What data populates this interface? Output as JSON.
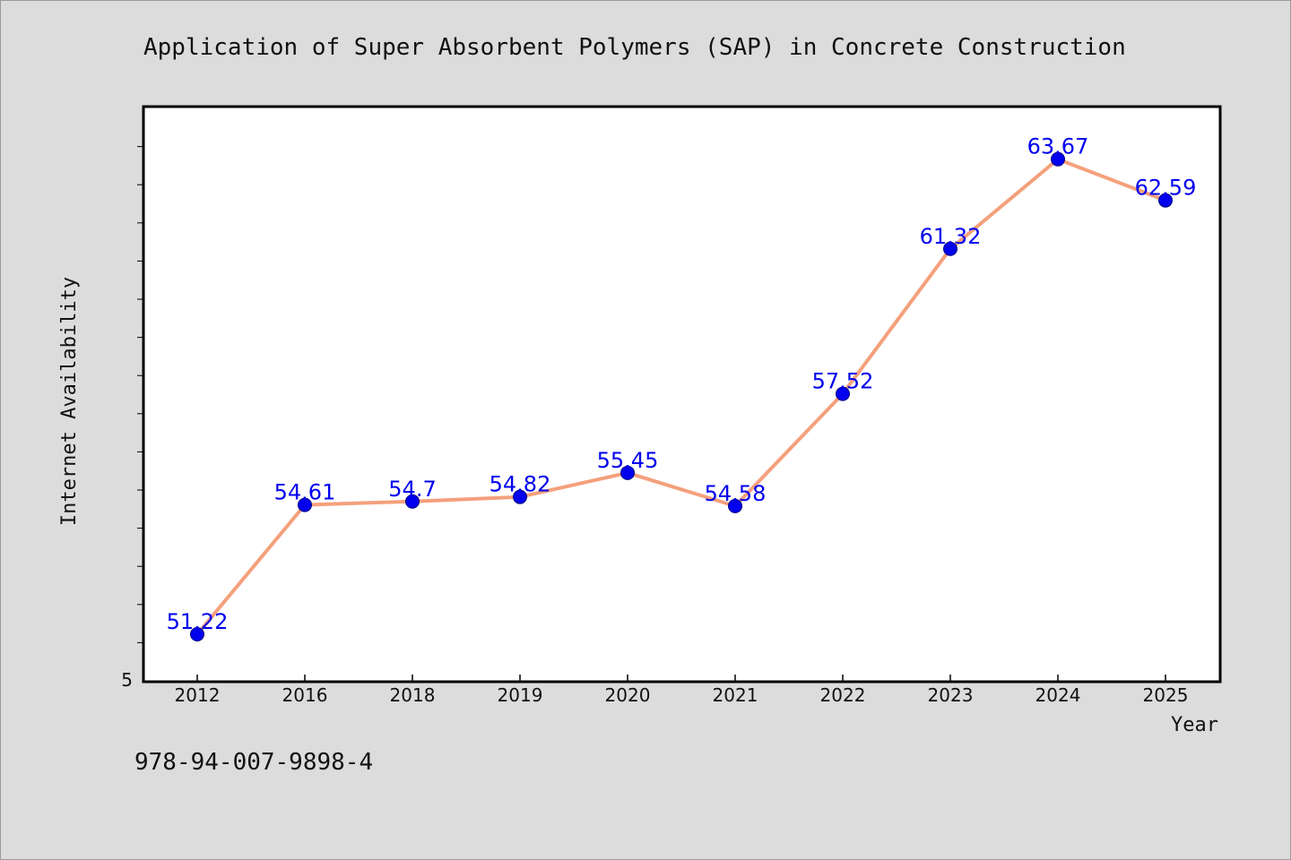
{
  "title": "Application of Super Absorbent Polymers (SAP) in Concrete Construction",
  "footer_code": "978-94-007-9898-4",
  "chart_data": {
    "type": "line",
    "categories": [
      "2012",
      "2016",
      "2018",
      "2019",
      "2020",
      "2021",
      "2022",
      "2023",
      "2024",
      "2025"
    ],
    "values": [
      51.22,
      54.61,
      54.7,
      54.82,
      55.45,
      54.58,
      57.52,
      61.32,
      63.67,
      62.59
    ],
    "data_labels": [
      "51.22",
      "54.61",
      "54.7",
      "54.82",
      "55.45",
      "54.58",
      "57.52",
      "61.32",
      "63.67",
      "62.59"
    ],
    "xlabel": "Year",
    "ylabel": "Internet Availability",
    "y_tick_labels": [
      "5"
    ],
    "ylim": [
      50.0,
      65.0
    ],
    "grid": false,
    "legend": "none",
    "colors": {
      "line": "#f4a07c",
      "marker": "#0000ee",
      "marker_edge": "#000080",
      "data_label": "#0000ee",
      "plot_background": "#ffffff",
      "page_background": "#dcdcdc"
    }
  }
}
